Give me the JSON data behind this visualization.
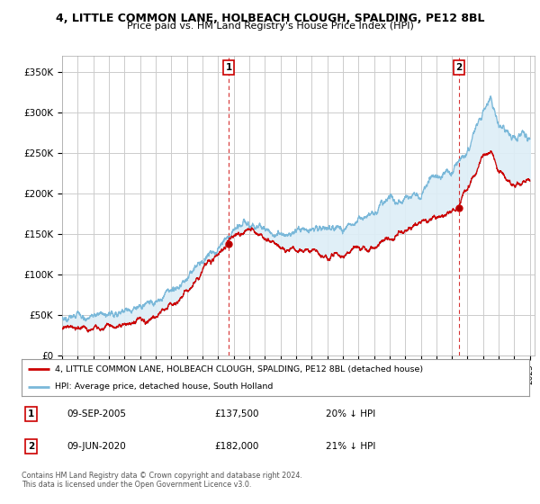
{
  "title": "4, LITTLE COMMON LANE, HOLBEACH CLOUGH, SPALDING, PE12 8BL",
  "subtitle": "Price paid vs. HM Land Registry's House Price Index (HPI)",
  "legend_line1": "4, LITTLE COMMON LANE, HOLBEACH CLOUGH, SPALDING, PE12 8BL (detached house)",
  "legend_line2": "HPI: Average price, detached house, South Holland",
  "footer1": "Contains HM Land Registry data © Crown copyright and database right 2024.",
  "footer2": "This data is licensed under the Open Government Licence v3.0.",
  "annotation1": {
    "label": "1",
    "date": "09-SEP-2005",
    "price": "£137,500",
    "hpi": "20% ↓ HPI"
  },
  "annotation2": {
    "label": "2",
    "date": "09-JUN-2020",
    "price": "£182,000",
    "hpi": "21% ↓ HPI"
  },
  "hpi_color": "#7ab8d9",
  "hpi_fill_color": "#ddeef7",
  "price_color": "#cc0000",
  "background_color": "#ffffff",
  "plot_bg_color": "#ffffff",
  "grid_color": "#cccccc",
  "ylim": [
    0,
    370000
  ],
  "yticks": [
    0,
    50000,
    100000,
    150000,
    200000,
    250000,
    300000,
    350000
  ],
  "ytick_labels": [
    "£0",
    "£50K",
    "£100K",
    "£150K",
    "£200K",
    "£250K",
    "£300K",
    "£350K"
  ],
  "year_start": 1995,
  "year_end": 2025,
  "purchase1_year": 2005.69,
  "purchase1_price": 137500,
  "purchase2_year": 2020.44,
  "purchase2_price": 182000
}
